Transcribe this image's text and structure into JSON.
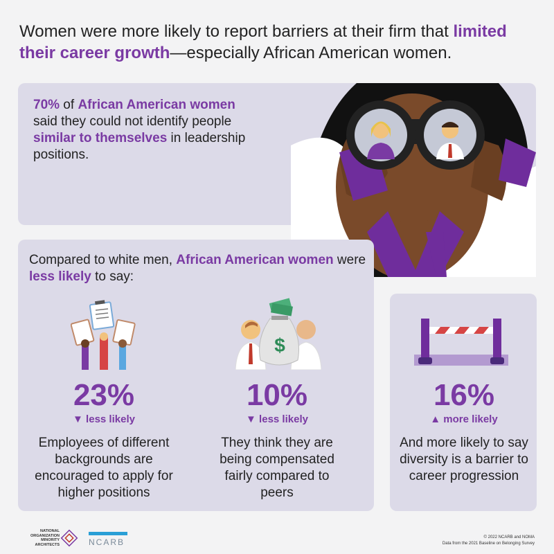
{
  "title": {
    "part1": "Women were more likely to report barriers at their firm that ",
    "highlight": "limited their career growth",
    "part2": "—especially African American women."
  },
  "top_callout": {
    "pct": "70%",
    "of": " of ",
    "group": "African American women",
    "line2": " said they could not identify people ",
    "highlight": "similar to themselves",
    "line3": " in leadership positions."
  },
  "compare": {
    "part1": "Compared to white men, ",
    "group": "African American women",
    "part2": " were ",
    "highlight": "less likely",
    "part3": " to say:"
  },
  "stats": [
    {
      "pct": "23%",
      "direction": "▼ less likely",
      "desc": "Employees of different backgrounds are encouraged to apply for higher positions",
      "icon": "clipboards-hands-icon"
    },
    {
      "pct": "10%",
      "direction": "▼ less likely",
      "desc": "They think they are being compensated fairly compared to peers",
      "icon": "money-bag-peers-icon"
    },
    {
      "pct": "16%",
      "direction": "▲ more likely",
      "desc": "And more likely to say diversity is a barrier to career progression",
      "icon": "barrier-icon"
    }
  ],
  "footer": {
    "noma_line1": "NATIONAL",
    "noma_line2": "ORGANIZATION",
    "noma_line3": "MINORITY",
    "noma_line4": "ARCHITECTS",
    "ncarb": "NCARB",
    "copyright": "© 2022 NCARB and NOMA",
    "source": "Data from the 2021 Baseline on Belonging Survey"
  },
  "colors": {
    "accent": "#7a3aa3",
    "panel": "#dcdae8",
    "background": "#f3f3f4"
  }
}
